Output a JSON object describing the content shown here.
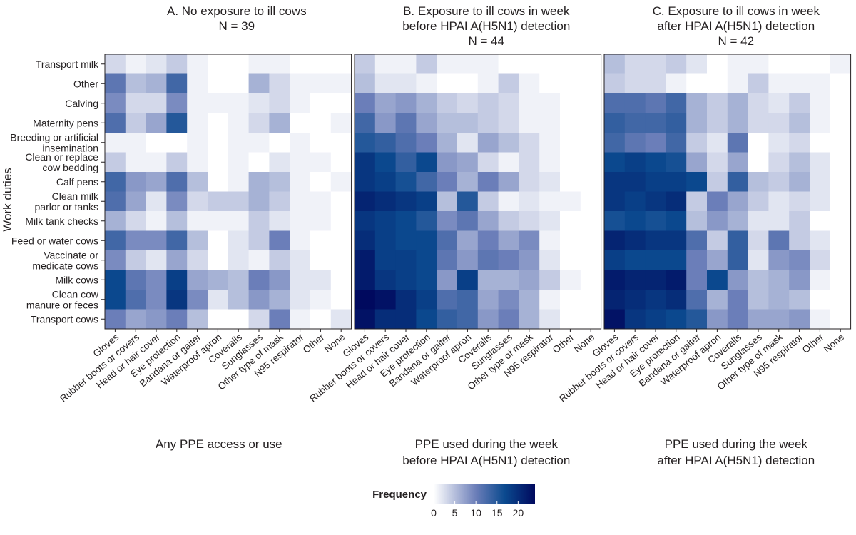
{
  "chart_data": {
    "type": "heatmap",
    "ylabel": "Work duties",
    "rows": [
      [
        "Transport milk"
      ],
      [
        "Other"
      ],
      [
        "Calving"
      ],
      [
        "Maternity pens"
      ],
      [
        "Breeding or artificial",
        "insemination"
      ],
      [
        "Clean or replace",
        "cow bedding"
      ],
      [
        "Calf pens"
      ],
      [
        "Clean milk",
        "parlor or tanks"
      ],
      [
        "Milk tank checks"
      ],
      [
        "Feed or water cows"
      ],
      [
        "Vaccinate or",
        "medicate cows"
      ],
      [
        "Milk cows"
      ],
      [
        "Clean cow",
        "manure or feces"
      ],
      [
        "Transport cows"
      ]
    ],
    "columns": [
      "Gloves",
      "Rubber boots or covers",
      "Head or hair cover",
      "Eye protection",
      "Bandana or gaiter",
      "Waterproof apron",
      "Coveralls",
      "Sunglasses",
      "Other type of mask",
      "N95 respirator",
      "Other",
      "None"
    ],
    "panels": [
      {
        "title": [
          "A. No exposure to ill cows",
          "N = 39"
        ],
        "subtitle": [
          "Any PPE access or use"
        ],
        "values": [
          [
            3,
            1,
            2,
            4,
            1,
            0,
            0,
            1,
            1,
            0,
            0,
            0
          ],
          [
            11,
            5,
            6,
            13,
            1,
            0,
            0,
            6,
            3,
            1,
            1,
            1
          ],
          [
            9,
            3,
            3,
            9,
            1,
            1,
            1,
            2,
            3,
            1,
            0,
            0
          ],
          [
            12,
            4,
            7,
            15,
            1,
            0,
            1,
            3,
            6,
            0,
            0,
            1
          ],
          [
            1,
            1,
            0,
            0,
            1,
            0,
            1,
            1,
            0,
            1,
            0,
            0
          ],
          [
            4,
            1,
            1,
            4,
            1,
            0,
            1,
            0,
            2,
            1,
            1,
            0
          ],
          [
            13,
            8,
            7,
            12,
            5,
            0,
            1,
            6,
            5,
            1,
            0,
            1
          ],
          [
            12,
            7,
            2,
            9,
            3,
            4,
            4,
            6,
            4,
            1,
            1,
            0
          ],
          [
            6,
            3,
            1,
            5,
            1,
            1,
            1,
            4,
            2,
            1,
            1,
            0
          ],
          [
            13,
            9,
            9,
            13,
            5,
            0,
            2,
            4,
            10,
            1,
            0,
            0
          ],
          [
            9,
            4,
            2,
            7,
            3,
            0,
            2,
            1,
            4,
            2,
            0,
            0
          ],
          [
            17,
            11,
            9,
            18,
            7,
            6,
            5,
            10,
            8,
            2,
            2,
            0
          ],
          [
            17,
            12,
            9,
            19,
            9,
            2,
            5,
            8,
            6,
            2,
            1,
            0
          ],
          [
            10,
            7,
            8,
            10,
            5,
            0,
            0,
            3,
            10,
            1,
            0,
            2
          ]
        ]
      },
      {
        "title": [
          "B. Exposure to ill cows in week",
          "before HPAI A(H5N1) detection",
          "N = 44"
        ],
        "subtitle": [
          "PPE used during the week",
          "before HPAI A(H5N1) detection"
        ],
        "values": [
          [
            4,
            1,
            1,
            4,
            1,
            1,
            1,
            0,
            0,
            0,
            0,
            0
          ],
          [
            5,
            2,
            2,
            1,
            0,
            0,
            1,
            4,
            1,
            0,
            0,
            0
          ],
          [
            10,
            7,
            8,
            6,
            4,
            3,
            4,
            3,
            1,
            1,
            0,
            0
          ],
          [
            13,
            8,
            11,
            7,
            5,
            5,
            4,
            3,
            1,
            1,
            0,
            0
          ],
          [
            15,
            14,
            12,
            10,
            6,
            2,
            7,
            5,
            3,
            1,
            0,
            0
          ],
          [
            19,
            17,
            14,
            17,
            8,
            7,
            3,
            1,
            3,
            1,
            0,
            0
          ],
          [
            19,
            18,
            16,
            13,
            10,
            6,
            10,
            7,
            3,
            2,
            0,
            0
          ],
          [
            21,
            20,
            19,
            18,
            5,
            15,
            4,
            1,
            2,
            1,
            1,
            0
          ],
          [
            19,
            18,
            17,
            15,
            9,
            11,
            7,
            4,
            3,
            2,
            0,
            0
          ],
          [
            20,
            18,
            17,
            17,
            12,
            7,
            10,
            7,
            9,
            1,
            0,
            0
          ],
          [
            22,
            18,
            18,
            17,
            11,
            8,
            11,
            10,
            8,
            2,
            0,
            0
          ],
          [
            22,
            19,
            18,
            17,
            8,
            18,
            6,
            6,
            7,
            4,
            1,
            0
          ],
          [
            24,
            23,
            20,
            18,
            12,
            13,
            7,
            9,
            6,
            1,
            0,
            0
          ],
          [
            23,
            20,
            20,
            17,
            14,
            13,
            8,
            10,
            6,
            2,
            0,
            0
          ]
        ]
      },
      {
        "title": [
          "C. Exposure to ill cows in week",
          "after HPAI A(H5N1) detection",
          "N = 42"
        ],
        "subtitle": [
          "PPE used during the week",
          "after HPAI A(H5N1) detection"
        ],
        "values": [
          [
            5,
            3,
            3,
            4,
            2,
            0,
            1,
            1,
            0,
            0,
            0,
            1
          ],
          [
            4,
            3,
            3,
            1,
            0,
            0,
            1,
            4,
            1,
            1,
            1,
            0
          ],
          [
            12,
            12,
            11,
            13,
            6,
            4,
            6,
            3,
            2,
            4,
            1,
            0
          ],
          [
            14,
            13,
            13,
            14,
            6,
            4,
            6,
            3,
            3,
            5,
            1,
            0
          ],
          [
            13,
            11,
            10,
            13,
            4,
            2,
            11,
            0,
            2,
            3,
            0,
            0
          ],
          [
            17,
            18,
            17,
            16,
            7,
            3,
            7,
            0,
            3,
            5,
            2,
            0
          ],
          [
            19,
            19,
            18,
            18,
            17,
            4,
            14,
            5,
            4,
            6,
            2,
            0
          ],
          [
            19,
            18,
            19,
            20,
            4,
            10,
            7,
            4,
            2,
            3,
            2,
            0
          ],
          [
            16,
            17,
            16,
            17,
            5,
            8,
            6,
            2,
            2,
            4,
            0,
            0
          ],
          [
            21,
            20,
            19,
            19,
            12,
            4,
            14,
            3,
            11,
            4,
            2,
            0
          ],
          [
            18,
            17,
            17,
            17,
            10,
            7,
            14,
            2,
            8,
            9,
            3,
            0
          ],
          [
            22,
            21,
            21,
            22,
            10,
            17,
            8,
            5,
            6,
            8,
            1,
            0
          ],
          [
            21,
            20,
            19,
            20,
            12,
            6,
            10,
            5,
            6,
            5,
            0,
            0
          ],
          [
            23,
            19,
            18,
            17,
            15,
            8,
            10,
            7,
            7,
            8,
            1,
            0
          ]
        ]
      }
    ],
    "legend": {
      "title": "Frequency",
      "ticks": [
        "0",
        "5",
        "10",
        "15",
        "20"
      ],
      "tick_values": [
        0,
        5,
        10,
        15,
        20
      ],
      "range": [
        0,
        24
      ]
    },
    "colors": {
      "low": "#ffffff",
      "mid": "#6a7db8",
      "high": "#0b4a8f",
      "max": "#00095e"
    }
  }
}
